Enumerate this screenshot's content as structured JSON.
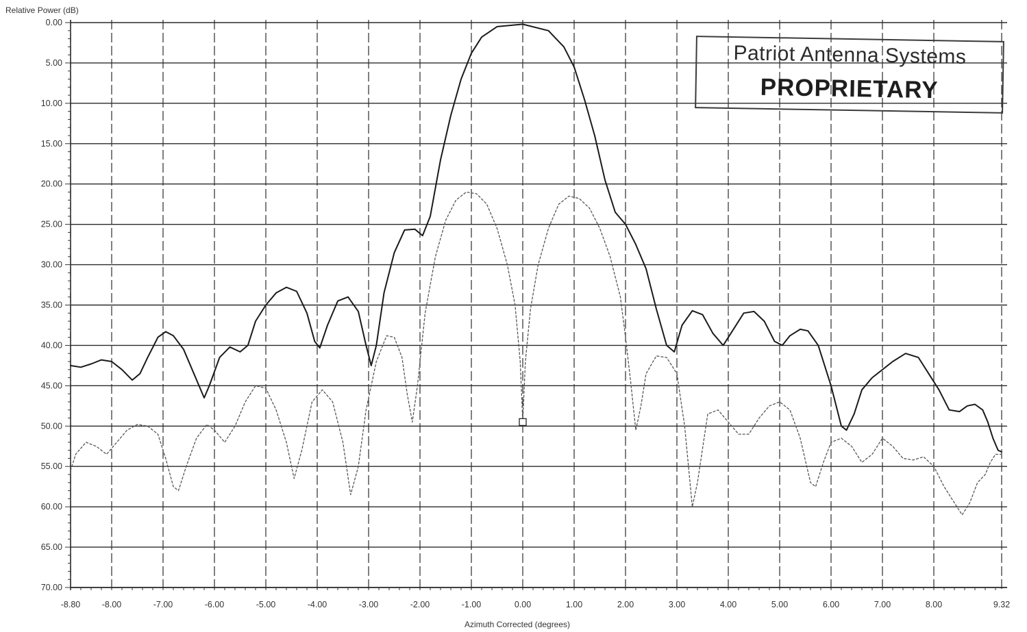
{
  "chart_data": {
    "type": "line",
    "ylabel": "Relative Power (dB)",
    "xlabel": "Azimuth Corrected (degrees)",
    "xlim": [
      -8.8,
      9.32
    ],
    "ylim": [
      0,
      70
    ],
    "y_inverted": true,
    "x_ticks": [
      "-8.80",
      "-8.00",
      "-7.00",
      "-6.00",
      "-5.00",
      "-4.00",
      "-3.00",
      "-2.00",
      "-1.00",
      "0.00",
      "1.00",
      "2.00",
      "3.00",
      "4.00",
      "5.00",
      "6.00",
      "7.00",
      "8.00",
      "9.32"
    ],
    "x_tick_values": [
      -8.8,
      -8,
      -7,
      -6,
      -5,
      -4,
      -3,
      -2,
      -1,
      0,
      1,
      2,
      3,
      4,
      5,
      6,
      7,
      8,
      9.32
    ],
    "y_ticks": [
      "0.00",
      "5.00",
      "10.00",
      "15.00",
      "20.00",
      "25.00",
      "30.00",
      "35.00",
      "40.00",
      "45.00",
      "50.00",
      "55.00",
      "60.00",
      "65.00",
      "70.00"
    ],
    "y_tick_values": [
      0,
      5,
      10,
      15,
      20,
      25,
      30,
      35,
      40,
      45,
      50,
      55,
      60,
      65,
      70
    ],
    "grid": true,
    "series": [
      {
        "style": "solid",
        "color": "#1a1a1a",
        "points": [
          [
            -8.8,
            42.5
          ],
          [
            -8.6,
            42.7
          ],
          [
            -8.4,
            42.3
          ],
          [
            -8.2,
            41.8
          ],
          [
            -8.0,
            42.0
          ],
          [
            -7.8,
            43.0
          ],
          [
            -7.6,
            44.3
          ],
          [
            -7.45,
            43.5
          ],
          [
            -7.3,
            41.5
          ],
          [
            -7.1,
            39.0
          ],
          [
            -6.95,
            38.3
          ],
          [
            -6.8,
            38.8
          ],
          [
            -6.6,
            40.5
          ],
          [
            -6.4,
            43.5
          ],
          [
            -6.2,
            46.5
          ],
          [
            -6.1,
            45.0
          ],
          [
            -5.9,
            41.5
          ],
          [
            -5.7,
            40.2
          ],
          [
            -5.5,
            40.8
          ],
          [
            -5.35,
            40.0
          ],
          [
            -5.2,
            37.0
          ],
          [
            -5.0,
            35.0
          ],
          [
            -4.8,
            33.5
          ],
          [
            -4.6,
            32.8
          ],
          [
            -4.4,
            33.3
          ],
          [
            -4.2,
            36.0
          ],
          [
            -4.05,
            39.5
          ],
          [
            -3.95,
            40.3
          ],
          [
            -3.8,
            37.5
          ],
          [
            -3.6,
            34.5
          ],
          [
            -3.4,
            34.0
          ],
          [
            -3.2,
            35.8
          ],
          [
            -3.05,
            40.0
          ],
          [
            -2.95,
            42.5
          ],
          [
            -2.85,
            40.0
          ],
          [
            -2.7,
            33.5
          ],
          [
            -2.5,
            28.5
          ],
          [
            -2.3,
            25.7
          ],
          [
            -2.1,
            25.6
          ],
          [
            -1.95,
            26.4
          ],
          [
            -1.8,
            24.0
          ],
          [
            -1.6,
            17.0
          ],
          [
            -1.4,
            11.5
          ],
          [
            -1.2,
            7.0
          ],
          [
            -1.0,
            3.8
          ],
          [
            -0.8,
            1.8
          ],
          [
            -0.5,
            0.5
          ],
          [
            0.0,
            0.2
          ],
          [
            0.5,
            1.0
          ],
          [
            0.8,
            3.0
          ],
          [
            1.0,
            5.5
          ],
          [
            1.2,
            9.5
          ],
          [
            1.4,
            14.0
          ],
          [
            1.6,
            19.5
          ],
          [
            1.8,
            23.5
          ],
          [
            2.0,
            25.0
          ],
          [
            2.2,
            27.5
          ],
          [
            2.4,
            30.5
          ],
          [
            2.6,
            35.5
          ],
          [
            2.8,
            40.0
          ],
          [
            2.95,
            40.8
          ],
          [
            3.1,
            37.5
          ],
          [
            3.3,
            35.7
          ],
          [
            3.5,
            36.2
          ],
          [
            3.7,
            38.5
          ],
          [
            3.9,
            40.0
          ],
          [
            4.05,
            38.5
          ],
          [
            4.3,
            36.0
          ],
          [
            4.5,
            35.8
          ],
          [
            4.7,
            37.0
          ],
          [
            4.9,
            39.5
          ],
          [
            5.05,
            40.0
          ],
          [
            5.2,
            38.8
          ],
          [
            5.4,
            38.0
          ],
          [
            5.55,
            38.2
          ],
          [
            5.75,
            40.0
          ],
          [
            6.0,
            45.0
          ],
          [
            6.2,
            50.0
          ],
          [
            6.3,
            50.5
          ],
          [
            6.45,
            48.5
          ],
          [
            6.6,
            45.5
          ],
          [
            6.8,
            44.0
          ],
          [
            7.0,
            43.0
          ],
          [
            7.2,
            42.0
          ],
          [
            7.45,
            41.0
          ],
          [
            7.7,
            41.5
          ],
          [
            7.9,
            43.5
          ],
          [
            8.1,
            45.5
          ],
          [
            8.3,
            48.0
          ],
          [
            8.5,
            48.2
          ],
          [
            8.65,
            47.5
          ],
          [
            8.8,
            47.3
          ],
          [
            8.95,
            48.0
          ],
          [
            9.05,
            49.5
          ],
          [
            9.15,
            51.5
          ],
          [
            9.25,
            53.0
          ],
          [
            9.32,
            53.2
          ]
        ]
      },
      {
        "style": "dotted",
        "color": "#555555",
        "points": [
          [
            -8.8,
            55.5
          ],
          [
            -8.7,
            53.5
          ],
          [
            -8.5,
            52.0
          ],
          [
            -8.3,
            52.5
          ],
          [
            -8.1,
            53.5
          ],
          [
            -7.9,
            52.0
          ],
          [
            -7.7,
            50.5
          ],
          [
            -7.5,
            49.8
          ],
          [
            -7.3,
            50.0
          ],
          [
            -7.1,
            51.0
          ],
          [
            -6.95,
            54.0
          ],
          [
            -6.8,
            57.5
          ],
          [
            -6.7,
            58.0
          ],
          [
            -6.55,
            55.0
          ],
          [
            -6.35,
            51.5
          ],
          [
            -6.15,
            49.8
          ],
          [
            -6.0,
            50.5
          ],
          [
            -5.8,
            52.0
          ],
          [
            -5.6,
            50.0
          ],
          [
            -5.4,
            47.0
          ],
          [
            -5.2,
            45.0
          ],
          [
            -5.0,
            45.3
          ],
          [
            -4.8,
            48.0
          ],
          [
            -4.6,
            52.0
          ],
          [
            -4.45,
            56.5
          ],
          [
            -4.3,
            53.0
          ],
          [
            -4.1,
            47.0
          ],
          [
            -3.9,
            45.5
          ],
          [
            -3.7,
            47.0
          ],
          [
            -3.5,
            52.0
          ],
          [
            -3.35,
            58.5
          ],
          [
            -3.2,
            55.0
          ],
          [
            -3.05,
            48.0
          ],
          [
            -2.85,
            42.0
          ],
          [
            -2.65,
            38.8
          ],
          [
            -2.5,
            39.0
          ],
          [
            -2.35,
            41.5
          ],
          [
            -2.25,
            46.0
          ],
          [
            -2.15,
            49.5
          ],
          [
            -2.05,
            45.0
          ],
          [
            -1.9,
            36.0
          ],
          [
            -1.7,
            29.0
          ],
          [
            -1.5,
            24.5
          ],
          [
            -1.3,
            22.0
          ],
          [
            -1.1,
            21.0
          ],
          [
            -0.9,
            21.2
          ],
          [
            -0.7,
            22.5
          ],
          [
            -0.5,
            25.5
          ],
          [
            -0.3,
            30.0
          ],
          [
            -0.15,
            35.0
          ],
          [
            -0.05,
            42.0
          ],
          [
            0.0,
            49.5
          ],
          [
            0.05,
            42.0
          ],
          [
            0.15,
            35.5
          ],
          [
            0.3,
            30.0
          ],
          [
            0.5,
            25.5
          ],
          [
            0.7,
            22.5
          ],
          [
            0.9,
            21.5
          ],
          [
            1.1,
            21.8
          ],
          [
            1.3,
            23.0
          ],
          [
            1.5,
            25.5
          ],
          [
            1.7,
            29.0
          ],
          [
            1.9,
            34.0
          ],
          [
            2.0,
            39.0
          ],
          [
            2.1,
            44.5
          ],
          [
            2.2,
            50.5
          ],
          [
            2.3,
            47.5
          ],
          [
            2.4,
            43.5
          ],
          [
            2.6,
            41.3
          ],
          [
            2.8,
            41.5
          ],
          [
            3.0,
            43.5
          ],
          [
            3.15,
            50.0
          ],
          [
            3.3,
            60.0
          ],
          [
            3.4,
            57.0
          ],
          [
            3.6,
            48.5
          ],
          [
            3.8,
            48.0
          ],
          [
            4.0,
            49.5
          ],
          [
            4.2,
            51.0
          ],
          [
            4.4,
            51.0
          ],
          [
            4.6,
            49.0
          ],
          [
            4.8,
            47.5
          ],
          [
            5.0,
            47.0
          ],
          [
            5.2,
            48.0
          ],
          [
            5.4,
            51.5
          ],
          [
            5.6,
            57.0
          ],
          [
            5.7,
            57.5
          ],
          [
            5.85,
            54.5
          ],
          [
            6.0,
            52.0
          ],
          [
            6.2,
            51.5
          ],
          [
            6.4,
            52.5
          ],
          [
            6.6,
            54.5
          ],
          [
            6.8,
            53.5
          ],
          [
            7.0,
            51.5
          ],
          [
            7.2,
            52.5
          ],
          [
            7.4,
            54.0
          ],
          [
            7.6,
            54.2
          ],
          [
            7.8,
            53.8
          ],
          [
            8.0,
            55.0
          ],
          [
            8.2,
            57.5
          ],
          [
            8.4,
            59.5
          ],
          [
            8.55,
            61.0
          ],
          [
            8.7,
            59.5
          ],
          [
            8.85,
            57.0
          ],
          [
            9.0,
            56.0
          ],
          [
            9.1,
            54.5
          ],
          [
            9.2,
            53.5
          ],
          [
            9.32,
            53.5
          ]
        ]
      }
    ],
    "marker": {
      "x": 0.0,
      "y": 49.5,
      "shape": "square"
    },
    "annotation_stamp": {
      "line1": "Patriot  Antenna  Systems",
      "line2": "PROPRIETARY"
    }
  }
}
